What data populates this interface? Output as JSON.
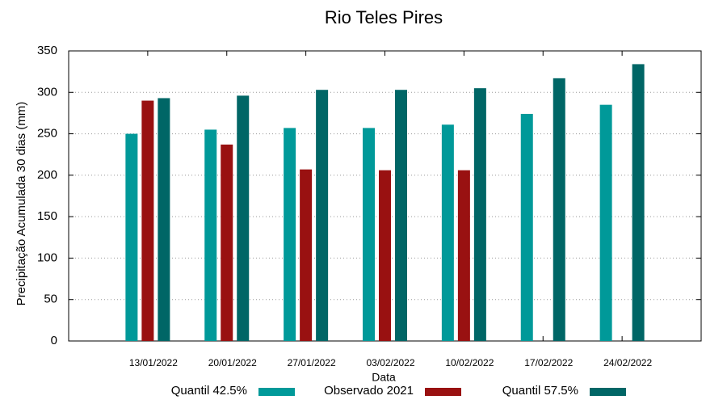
{
  "chart_data": {
    "type": "bar",
    "title": "Rio Teles Pires",
    "x_label": "Data",
    "y_label": "Precipitação Acumulada 30 dias (mm)",
    "categories": [
      "13/01/2022",
      "20/01/2022",
      "27/01/2022",
      "03/02/2022",
      "10/02/2022",
      "17/02/2022",
      "24/02/2022"
    ],
    "series": [
      {
        "name": "Quantil 42.5%",
        "color": "#009999",
        "values": [
          250,
          255,
          257,
          257,
          261,
          274,
          285
        ]
      },
      {
        "name": "Observado 2021",
        "color": "#991111",
        "values": [
          290,
          237,
          207,
          206,
          206,
          null,
          null
        ]
      },
      {
        "name": "Quantil 57.5%",
        "color": "#006666",
        "values": [
          293,
          296,
          303,
          303,
          305,
          317,
          334
        ]
      }
    ],
    "ylim": [
      0,
      350
    ],
    "yticks": [
      0,
      50,
      100,
      150,
      200,
      250,
      300,
      350
    ],
    "grid": true,
    "legend": "bottom"
  }
}
